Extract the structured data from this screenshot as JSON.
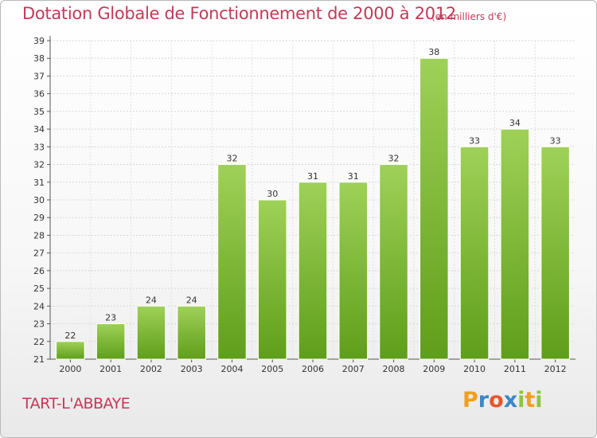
{
  "chart_data": {
    "type": "bar",
    "title": "Dotation Globale de Fonctionnement de 2000 à 2012",
    "subtitle": "(en milliers d'€)",
    "xlabel": "",
    "ylabel": "",
    "categories": [
      "2000",
      "2001",
      "2002",
      "2003",
      "2004",
      "2005",
      "2006",
      "2007",
      "2008",
      "2009",
      "2010",
      "2011",
      "2012"
    ],
    "values": [
      22,
      23,
      24,
      24,
      32,
      30,
      31,
      31,
      32,
      38,
      33,
      34,
      33
    ],
    "ylim": [
      21,
      39
    ],
    "y_ticks": [
      21,
      22,
      23,
      24,
      25,
      26,
      27,
      28,
      29,
      30,
      31,
      32,
      33,
      34,
      35,
      36,
      37,
      38,
      39
    ],
    "grid": true,
    "legend": "none",
    "colors": {
      "bar_top": "#9fd158",
      "bar_bottom": "#5f9e1a",
      "title": "#c23a57"
    }
  },
  "place_name": "TART-L'ABBAYE",
  "logo": {
    "letters": [
      "P",
      "r",
      "o",
      "x",
      "i",
      "t",
      "i"
    ],
    "colors": [
      "#f0a020",
      "#3d86c6",
      "#e8552b",
      "#3d86c6",
      "#8cc63f",
      "#f0a020",
      "#8cc63f"
    ]
  }
}
